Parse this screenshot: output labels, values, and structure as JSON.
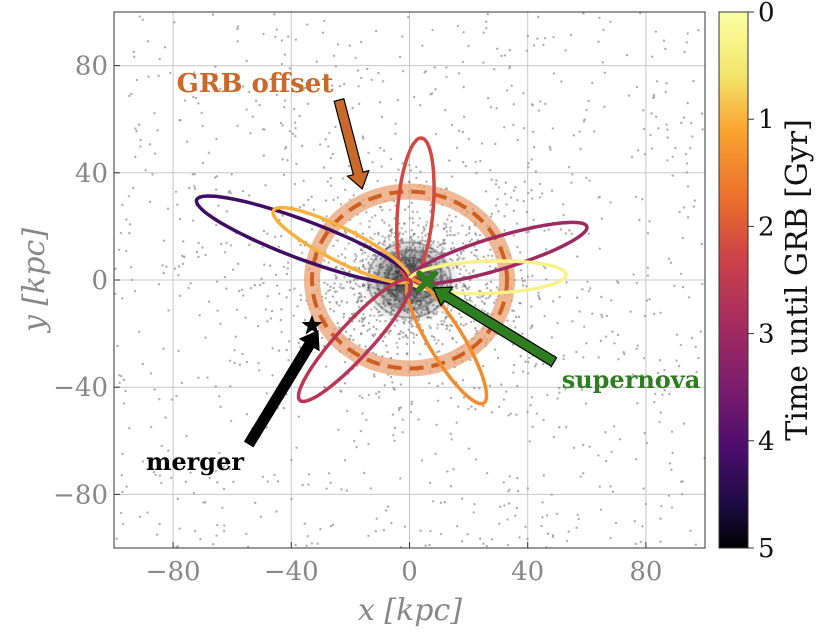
{
  "chart_data": {
    "type": "scatter",
    "xlabel": "x [kpc]",
    "ylabel": "y [kpc]",
    "xlim": [
      -100,
      100
    ],
    "ylim": [
      -100,
      100
    ],
    "xticks": [
      -80,
      -40,
      0,
      40,
      80
    ],
    "yticks": [
      -80,
      -40,
      0,
      40,
      80
    ],
    "x_tick_labels": [
      "−80",
      "−40",
      "0",
      "40",
      "80"
    ],
    "y_tick_labels": [
      "−80",
      "−40",
      "0",
      "40",
      "80"
    ],
    "grid": true,
    "colorbar": {
      "label": "Time until GRB [Gyr]",
      "range": [
        0,
        5
      ],
      "ticks": [
        0,
        1,
        2,
        3,
        4,
        5
      ],
      "tick_labels": [
        "0",
        "1",
        "2",
        "3",
        "4",
        "5"
      ],
      "colormap": "inferno",
      "direction": "0 at top, 5 at bottom"
    },
    "galaxy_center": [
      0,
      0
    ],
    "halo_disk_radius": 16,
    "grb_offset_radius": 33,
    "orbit_petals": [
      {
        "apex": [
          4,
          53
        ],
        "time_gyr": 2.2
      },
      {
        "apex": [
          -72,
          30
        ],
        "time_gyr": 4.2
      },
      {
        "apex": [
          -46,
          26
        ],
        "time_gyr": 1.0
      },
      {
        "apex": [
          60,
          20
        ],
        "time_gyr": 3.0
      },
      {
        "apex": [
          53,
          2
        ],
        "time_gyr": 0.3
      },
      {
        "apex": [
          25,
          -46
        ],
        "time_gyr": 1.4
      },
      {
        "apex": [
          -37,
          -45
        ],
        "time_gyr": 2.6
      }
    ],
    "markers": {
      "merger": {
        "x": -33,
        "y": -17,
        "symbol": "star",
        "color": "#000000"
      },
      "supernova": {
        "x": 6,
        "y": -0.5,
        "symbol": "cross",
        "color": "#2e7d1f"
      }
    },
    "annotations": [
      {
        "text": "GRB offset",
        "color": "#c96a2a",
        "points_to": [
          -16,
          34
        ]
      },
      {
        "text": "supernova",
        "color": "#2e7d1f",
        "points_to": [
          8,
          -3
        ]
      },
      {
        "text": "merger",
        "color": "#000000",
        "points_to": [
          -31,
          -19
        ]
      }
    ],
    "scatter_background": "grey stellar particles concentrated toward center, sparse to ±100 kpc"
  }
}
